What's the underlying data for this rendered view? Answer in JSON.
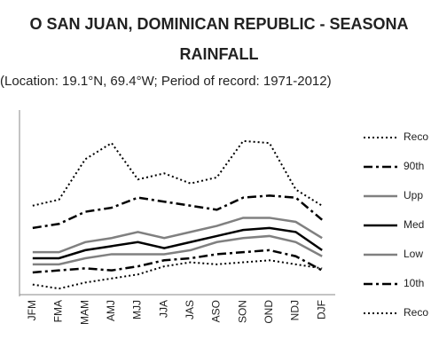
{
  "chart_data": {
    "type": "line",
    "title": [
      "O SAN JUAN, DOMINICAN REPUBLIC - SEASONA",
      "RAINFALL"
    ],
    "subtitle": "(Location: 19.1°N, 69.4°W; Period of record: 1971-2012)",
    "categories": [
      "JFM",
      "FMA",
      "MAM",
      "AMJ",
      "MJJ",
      "JJA",
      "JAS",
      "ASO",
      "SON",
      "OND",
      "NDJ",
      "DJF"
    ],
    "ylim": [
      0,
      9
    ],
    "series": [
      {
        "name": "Reco",
        "color": "#000000",
        "dash": "dotted",
        "values": [
          4.4,
          4.7,
          6.7,
          7.5,
          5.7,
          6.0,
          5.5,
          5.8,
          7.6,
          7.5,
          5.2,
          4.4
        ]
      },
      {
        "name": "90th",
        "color": "#000000",
        "dash": "dashdot",
        "values": [
          3.3,
          3.5,
          4.1,
          4.3,
          4.8,
          4.6,
          4.4,
          4.2,
          4.8,
          4.9,
          4.8,
          3.7
        ]
      },
      {
        "name": "Upp",
        "color": "#808080",
        "dash": "solid",
        "values": [
          2.1,
          2.1,
          2.6,
          2.8,
          3.1,
          2.8,
          3.1,
          3.4,
          3.8,
          3.8,
          3.6,
          2.8
        ]
      },
      {
        "name": "Med",
        "color": "#000000",
        "dash": "solid",
        "values": [
          1.8,
          1.8,
          2.2,
          2.4,
          2.6,
          2.3,
          2.6,
          2.9,
          3.2,
          3.3,
          3.1,
          2.2
        ]
      },
      {
        "name": "Low",
        "color": "#808080",
        "dash": "solid",
        "values": [
          1.5,
          1.5,
          1.8,
          2.0,
          2.0,
          2.0,
          2.2,
          2.6,
          2.8,
          2.9,
          2.6,
          1.9
        ]
      },
      {
        "name": "10th",
        "color": "#000000",
        "dash": "dashdot",
        "values": [
          1.1,
          1.2,
          1.3,
          1.2,
          1.4,
          1.7,
          1.8,
          2.0,
          2.1,
          2.2,
          1.9,
          1.2
        ]
      },
      {
        "name": "Reco",
        "color": "#000000",
        "dash": "dotted",
        "values": [
          0.5,
          0.3,
          0.6,
          0.8,
          1.0,
          1.4,
          1.6,
          1.5,
          1.6,
          1.7,
          1.5,
          1.3
        ]
      }
    ]
  }
}
